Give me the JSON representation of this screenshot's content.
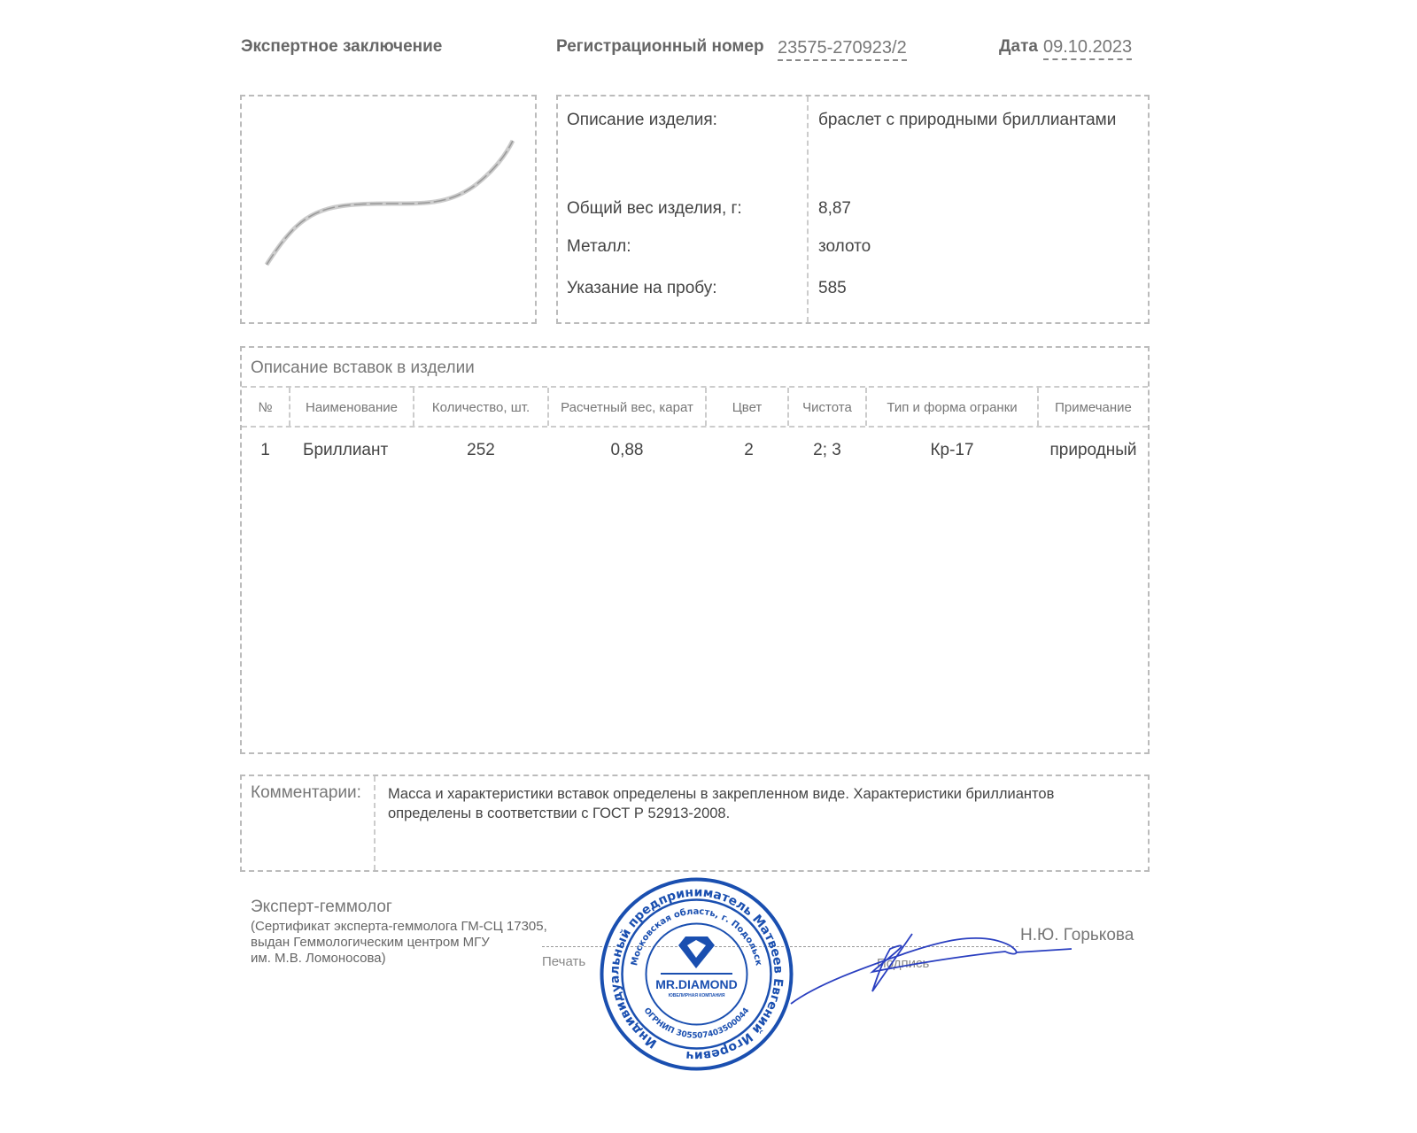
{
  "header": {
    "title": "Экспертное заключение",
    "reg_label": "Регистрационный номер",
    "reg_number": "23575-270923/2",
    "date_label": "Дата",
    "date": "09.10.2023"
  },
  "item": {
    "rows": [
      {
        "label": "Описание изделия:",
        "value": "браслет с природными бриллиантами"
      },
      {
        "label": "Общий вес изделия, г:",
        "value": "8,87"
      },
      {
        "label": "Металл:",
        "value": "золото"
      },
      {
        "label": "Указание на пробу:",
        "value": "585"
      }
    ]
  },
  "inserts": {
    "title": "Описание вставок в изделии",
    "columns": [
      "№",
      "Наименование",
      "Количество, шт.",
      "Расчетный вес, карат",
      "Цвет",
      "Чистота",
      "Тип и форма огранки",
      "Примечание"
    ],
    "rows": [
      [
        "1",
        "Бриллиант",
        "252",
        "0,88",
        "2",
        "2; 3",
        "Кр-17",
        "природный"
      ]
    ]
  },
  "comments": {
    "label": "Комментарии:",
    "text": "Масса и характеристики вставок определены в закрепленном виде. Характеристики бриллиантов определены в соответствии с ГОСТ Р 52913-2008."
  },
  "expert": {
    "title": "Эксперт-геммолог",
    "line1": "(Сертификат эксперта-геммолога ГМ-СЦ 17305,",
    "line2": "выдан Геммологическим центром МГУ",
    "line3": "им. М.В. Ломоносова)",
    "stamp_label": "Печать",
    "signature_label": "Подпись",
    "name": "Н.Ю. Горькова"
  },
  "stamp": {
    "outer_text": "Индивидуальный предприниматель Матвеев Евгений Игоревич",
    "inner_text": "Московская область, г. Подольск",
    "bottom_text": "ОГРНИП 305507403500044",
    "brand": "MR.DIAMOND",
    "brand_sub": "ЮВЕЛИРНАЯ КОМПАНИЯ",
    "color": "#1a4fb0"
  }
}
